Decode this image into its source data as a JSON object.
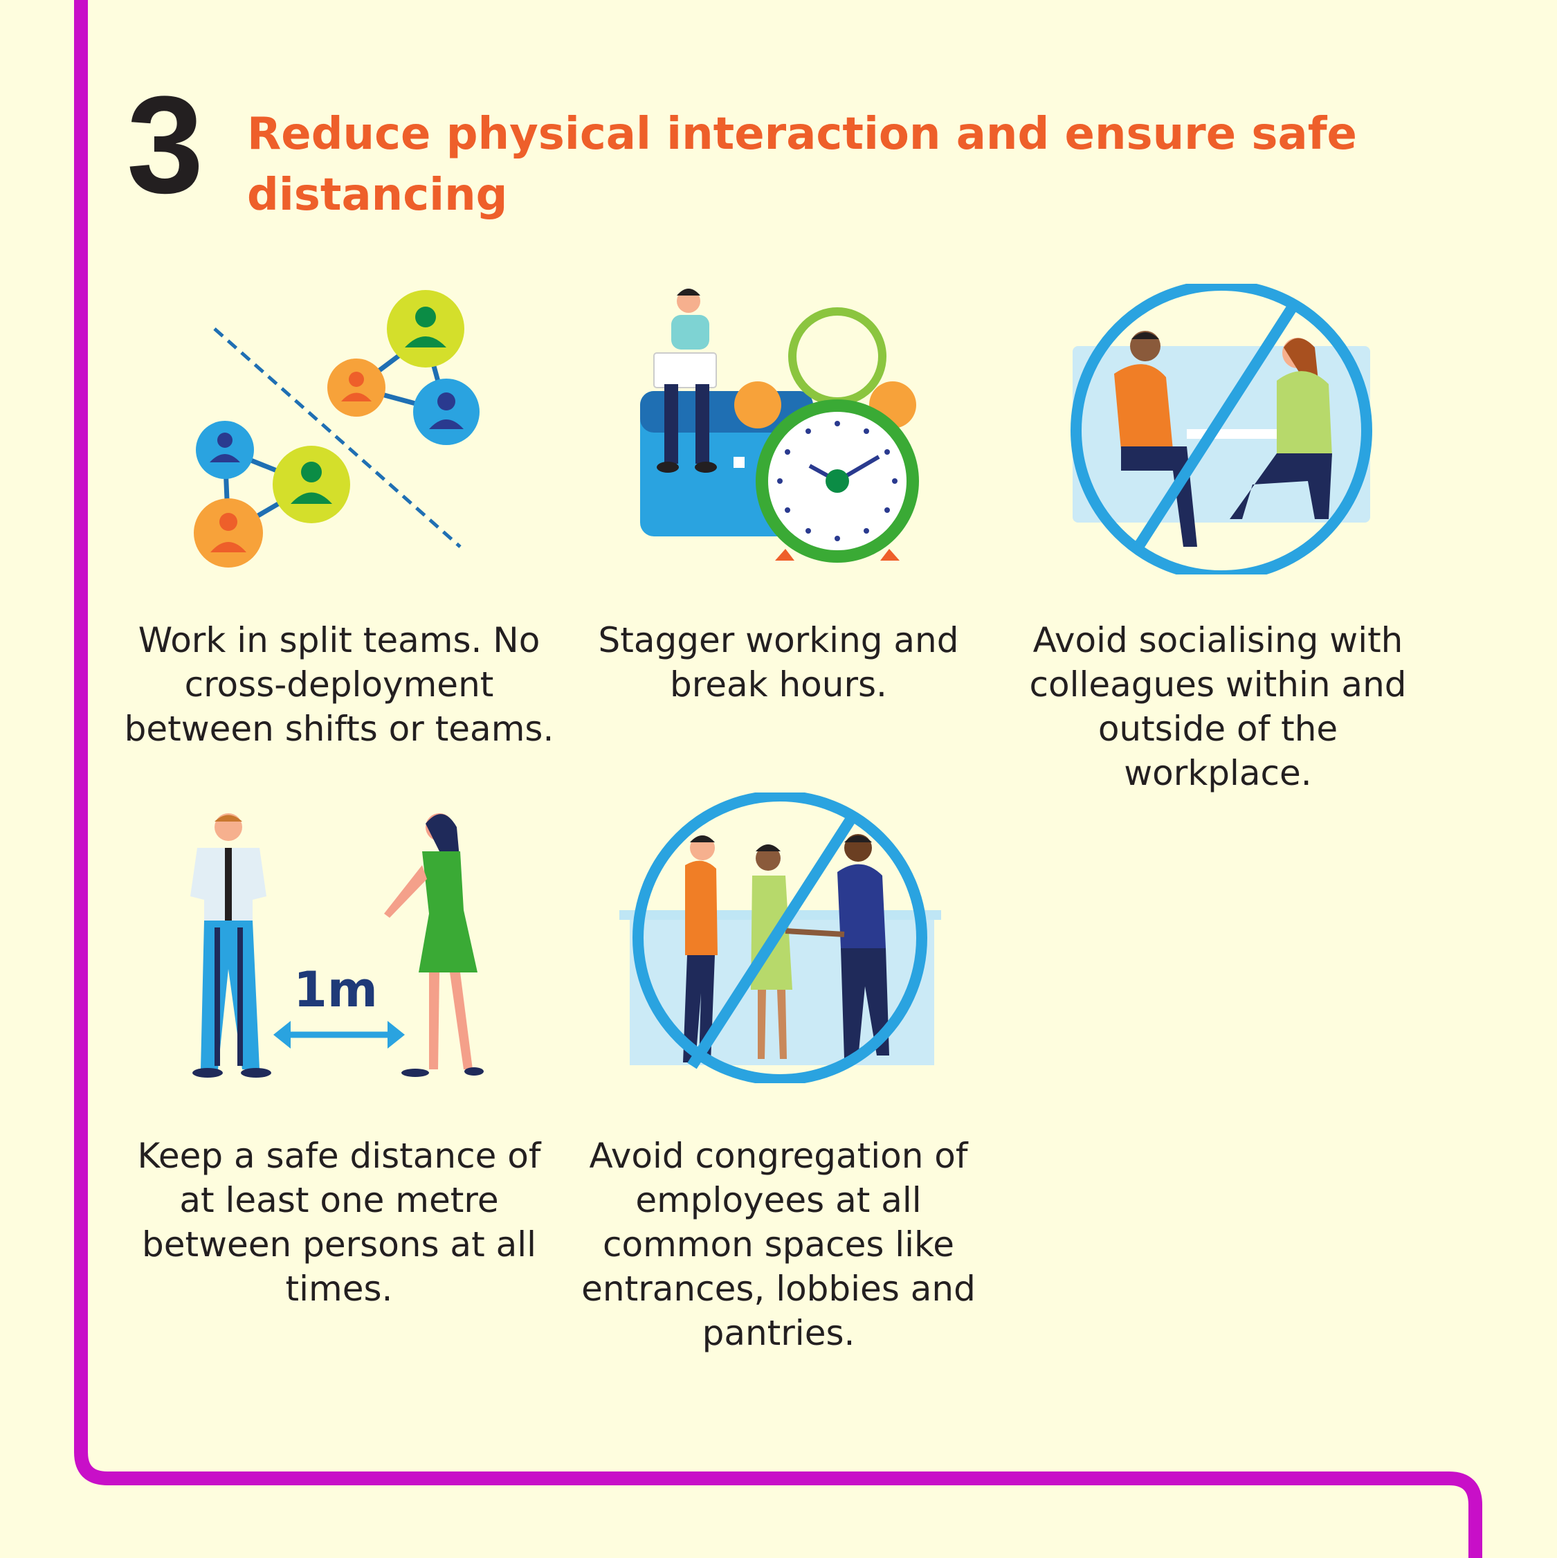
{
  "section": {
    "number": "3",
    "title": "Reduce physical interaction and ensure safe distancing"
  },
  "tips": [
    {
      "icon": "split-teams-network-icon",
      "text": "Work in split teams. No cross-deployment between shifts or teams."
    },
    {
      "icon": "alarm-clock-worker-icon",
      "text": "Stagger working and break hours."
    },
    {
      "icon": "no-socialising-icon",
      "text": "Avoid socialising with colleagues within and outside of the workplace."
    },
    {
      "icon": "safe-distance-icon",
      "text": "Keep a safe distance of at least one metre between persons at all times.",
      "distance_label": "1m"
    },
    {
      "icon": "no-congregation-icon",
      "text": "Avoid congregation of employees at all common spaces like entrances, lobbies and pantries."
    }
  ],
  "colors": {
    "background": "#fefdde",
    "frame": "#c80fc8",
    "heading": "#ee5f2a",
    "text": "#231f20",
    "prohibition": "#2aa3e0"
  }
}
